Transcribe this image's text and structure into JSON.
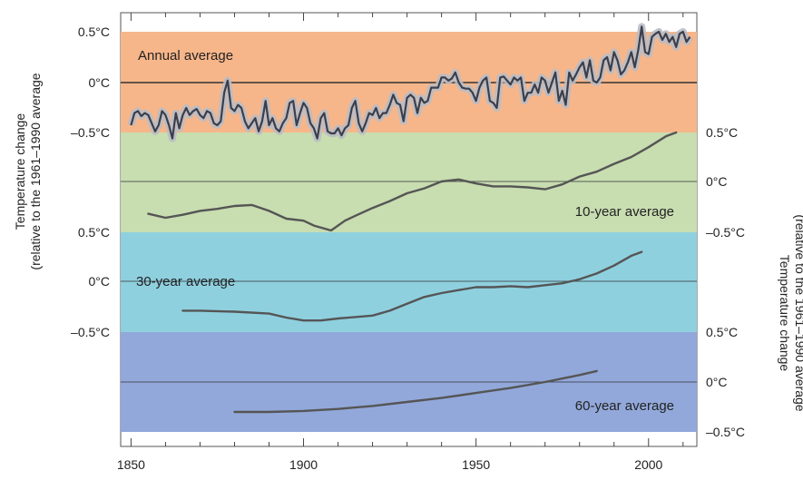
{
  "colors": {
    "annual": "#F7B68A",
    "decade": "#C8DDB0",
    "thirty": "#8FD0DF",
    "sixty": "#92A8DA",
    "line": "#555555",
    "line_dark": "#3b3f4c",
    "uncertainty": "#b9bcc4"
  },
  "chart_data": {
    "type": "line",
    "xlim": [
      1847,
      2014
    ],
    "x_ticks": [
      1850,
      1900,
      1950,
      2000
    ],
    "left_ylabel": [
      "Temperature change",
      "(relative to the 1961–1990 average"
    ],
    "right_ylabel": [
      "Temperature change",
      "(relative to the 1961–1990 average"
    ],
    "tick_text": {
      "plus": "0.5°C",
      "zero": "0°C",
      "minus": "–0.5°C"
    },
    "panels": [
      {
        "name": "Annual average",
        "label": "Annual average",
        "axis_side": "left",
        "ylim": [
          -0.5,
          0.5
        ],
        "series": [
          {
            "x": [
              1850,
              1851,
              1852,
              1853,
              1854,
              1855,
              1856,
              1857,
              1858,
              1859,
              1860,
              1861,
              1862,
              1863,
              1864,
              1865,
              1866,
              1867,
              1868,
              1869,
              1870,
              1871,
              1872,
              1873,
              1874,
              1875,
              1876,
              1877,
              1878,
              1879,
              1880,
              1881,
              1882,
              1883,
              1884,
              1885,
              1886,
              1887,
              1888,
              1889,
              1890,
              1891,
              1892,
              1893,
              1894,
              1895,
              1896,
              1897,
              1898,
              1899,
              1900,
              1901,
              1902,
              1903,
              1904,
              1905,
              1906,
              1907,
              1908,
              1909,
              1910,
              1911,
              1912,
              1913,
              1914,
              1915,
              1916,
              1917,
              1918,
              1919,
              1920,
              1921,
              1922,
              1923,
              1924,
              1925,
              1926,
              1927,
              1928,
              1929,
              1930,
              1931,
              1932,
              1933,
              1934,
              1935,
              1936,
              1937,
              1938,
              1939,
              1940,
              1941,
              1942,
              1943,
              1944,
              1945,
              1946,
              1947,
              1948,
              1949,
              1950,
              1951,
              1952,
              1953,
              1954,
              1955,
              1956,
              1957,
              1958,
              1959,
              1960,
              1961,
              1962,
              1963,
              1964,
              1965,
              1966,
              1967,
              1968,
              1969,
              1970,
              1971,
              1972,
              1973,
              1974,
              1975,
              1976,
              1977,
              1978,
              1979,
              1980,
              1981,
              1982,
              1983,
              1984,
              1985,
              1986,
              1987,
              1988,
              1989,
              1990,
              1991,
              1992,
              1993,
              1994,
              1995,
              1996,
              1997,
              1998,
              1999,
              2000,
              2001,
              2002,
              2003,
              2004,
              2005,
              2006,
              2007,
              2008,
              2009,
              2010,
              2011,
              2012
            ],
            "y": [
              -0.42,
              -0.3,
              -0.28,
              -0.33,
              -0.3,
              -0.32,
              -0.4,
              -0.48,
              -0.42,
              -0.28,
              -0.32,
              -0.42,
              -0.55,
              -0.3,
              -0.45,
              -0.32,
              -0.25,
              -0.32,
              -0.28,
              -0.26,
              -0.32,
              -0.35,
              -0.28,
              -0.3,
              -0.4,
              -0.42,
              -0.38,
              -0.1,
              0.02,
              -0.25,
              -0.28,
              -0.22,
              -0.25,
              -0.38,
              -0.45,
              -0.4,
              -0.35,
              -0.48,
              -0.38,
              -0.18,
              -0.42,
              -0.35,
              -0.45,
              -0.48,
              -0.4,
              -0.35,
              -0.2,
              -0.18,
              -0.42,
              -0.3,
              -0.2,
              -0.25,
              -0.4,
              -0.45,
              -0.55,
              -0.35,
              -0.3,
              -0.48,
              -0.5,
              -0.5,
              -0.45,
              -0.52,
              -0.45,
              -0.42,
              -0.25,
              -0.18,
              -0.4,
              -0.48,
              -0.4,
              -0.3,
              -0.32,
              -0.25,
              -0.35,
              -0.3,
              -0.3,
              -0.22,
              -0.12,
              -0.2,
              -0.22,
              -0.38,
              -0.15,
              -0.12,
              -0.15,
              -0.3,
              -0.15,
              -0.2,
              -0.18,
              -0.05,
              -0.05,
              -0.05,
              0.05,
              0.05,
              0.02,
              0.04,
              0.1,
              0.0,
              -0.05,
              -0.06,
              -0.06,
              -0.1,
              -0.18,
              -0.05,
              0.02,
              0.05,
              -0.18,
              -0.2,
              -0.25,
              0.05,
              0.06,
              0.02,
              -0.02,
              0.05,
              0.02,
              0.05,
              -0.18,
              -0.1,
              -0.1,
              -0.02,
              -0.1,
              0.05,
              0.02,
              -0.1,
              0.0,
              0.1,
              -0.18,
              -0.08,
              -0.22,
              0.1,
              0.02,
              0.08,
              0.15,
              0.2,
              0.05,
              0.22,
              0.02,
              0.0,
              0.05,
              0.22,
              0.25,
              0.12,
              0.3,
              0.22,
              0.08,
              0.12,
              0.2,
              0.3,
              0.15,
              0.32,
              0.55,
              0.3,
              0.28,
              0.45,
              0.48,
              0.5,
              0.42,
              0.48,
              0.4,
              0.45,
              0.35,
              0.48,
              0.5,
              0.4,
              0.45
            ]
          }
        ]
      },
      {
        "name": "10-year average",
        "label": "10-year average",
        "axis_side": "right",
        "ylim": [
          -0.5,
          0.5
        ],
        "series": [
          {
            "x": [
              1855,
              1860,
              1865,
              1870,
              1875,
              1880,
              1885,
              1890,
              1895,
              1900,
              1903,
              1908,
              1912,
              1915,
              1920,
              1925,
              1930,
              1935,
              1940,
              1945,
              1950,
              1955,
              1960,
              1965,
              1970,
              1975,
              1980,
              1985,
              1990,
              1995,
              2000,
              2005,
              2008
            ],
            "y": [
              -0.33,
              -0.37,
              -0.34,
              -0.3,
              -0.28,
              -0.25,
              -0.24,
              -0.3,
              -0.38,
              -0.4,
              -0.45,
              -0.5,
              -0.4,
              -0.35,
              -0.27,
              -0.2,
              -0.12,
              -0.07,
              0.0,
              0.02,
              -0.02,
              -0.05,
              -0.05,
              -0.06,
              -0.08,
              -0.03,
              0.05,
              0.1,
              0.18,
              0.25,
              0.35,
              0.46,
              0.5
            ]
          }
        ]
      },
      {
        "name": "30-year average",
        "label": "30-year average",
        "axis_side": "left",
        "ylim": [
          -0.5,
          0.5
        ],
        "series": [
          {
            "x": [
              1865,
              1870,
              1880,
              1890,
              1895,
              1900,
              1905,
              1910,
              1920,
              1925,
              1930,
              1935,
              1940,
              1945,
              1950,
              1955,
              1960,
              1965,
              1970,
              1975,
              1980,
              1985,
              1990,
              1995,
              1998
            ],
            "y": [
              -0.3,
              -0.3,
              -0.31,
              -0.33,
              -0.37,
              -0.4,
              -0.4,
              -0.38,
              -0.35,
              -0.3,
              -0.23,
              -0.16,
              -0.12,
              -0.09,
              -0.06,
              -0.06,
              -0.05,
              -0.06,
              -0.04,
              -0.02,
              0.02,
              0.08,
              0.16,
              0.26,
              0.3
            ]
          }
        ]
      },
      {
        "name": "60-year average",
        "label": "60-year average",
        "axis_side": "right",
        "ylim": [
          -0.5,
          0.5
        ],
        "series": [
          {
            "x": [
              1880,
              1890,
              1900,
              1910,
              1920,
              1930,
              1940,
              1950,
              1960,
              1970,
              1980,
              1985
            ],
            "y": [
              -0.3,
              -0.3,
              -0.29,
              -0.27,
              -0.24,
              -0.2,
              -0.16,
              -0.11,
              -0.06,
              0.0,
              0.07,
              0.11
            ]
          }
        ]
      }
    ]
  }
}
